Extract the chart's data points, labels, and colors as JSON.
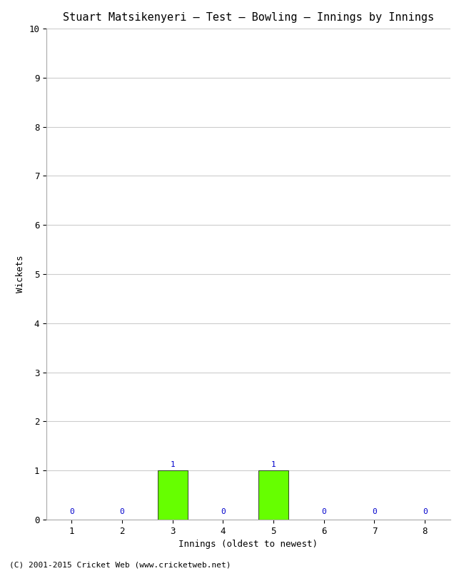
{
  "title": "Stuart Matsikenyeri – Test – Bowling – Innings by Innings",
  "xlabel": "Innings (oldest to newest)",
  "ylabel": "Wickets",
  "innings": [
    1,
    2,
    3,
    4,
    5,
    6,
    7,
    8
  ],
  "wickets": [
    0,
    0,
    1,
    0,
    1,
    0,
    0,
    0
  ],
  "zero_bar_color": "#ffffff",
  "nonzero_bar_color": "#66ff00",
  "ylim": [
    0,
    10
  ],
  "yticks": [
    0,
    1,
    2,
    3,
    4,
    5,
    6,
    7,
    8,
    9,
    10
  ],
  "background_color": "#ffffff",
  "grid_color": "#cccccc",
  "label_color": "#0000cc",
  "footer": "(C) 2001-2015 Cricket Web (www.cricketweb.net)",
  "title_fontsize": 11,
  "axis_label_fontsize": 9,
  "tick_fontsize": 9,
  "annotation_fontsize": 8,
  "footer_fontsize": 8,
  "bar_width": 0.6
}
